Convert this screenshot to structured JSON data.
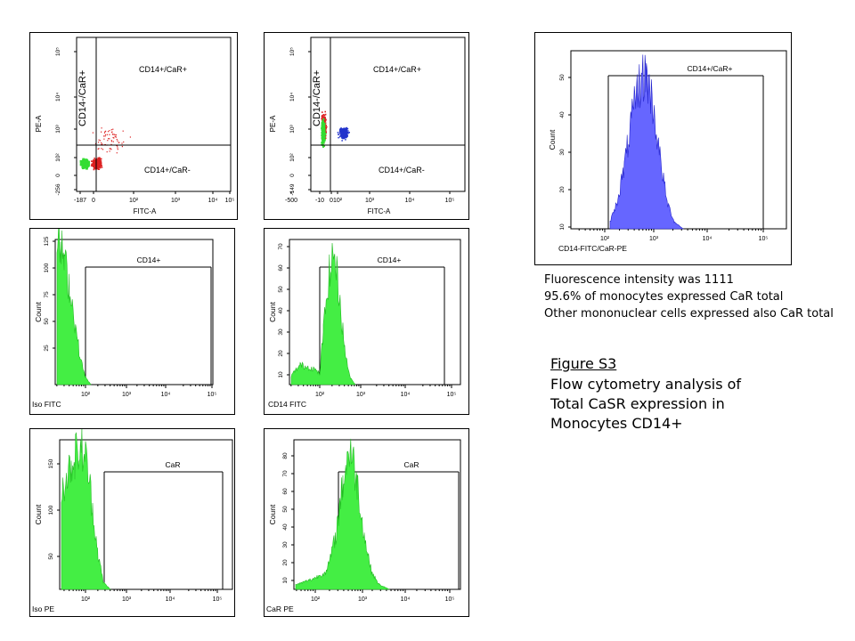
{
  "colors": {
    "green": "#33dd33",
    "red": "#dd2222",
    "blue": "#2233cc",
    "frame": "#000000",
    "hist_blue": "#4444ee"
  },
  "panels": {
    "dot1": {
      "xlabel": "FITC-A",
      "ylabel": "PE-A",
      "yticks": [
        "10⁵",
        "10⁴",
        "10³",
        "10²",
        "0",
        "-256"
      ],
      "xticks": [
        "-187",
        "0",
        "10²",
        "10³",
        "10⁴",
        "10⁵"
      ],
      "quadrants": {
        "ul": "CD14-/CaR+",
        "ur": "CD14+/CaR+",
        "lr": "CD14+/CaR-"
      }
    },
    "dot2": {
      "xlabel": "FITC-A",
      "ylabel": "PE-A",
      "yticks": [
        "10⁵",
        "10⁴",
        "10³",
        "10²",
        "0",
        "-149"
      ],
      "xticks": [
        "-500",
        "-10",
        "0",
        "10²",
        "10³",
        "10⁴",
        "10⁵"
      ],
      "quadrants": {
        "ul": "CD14-/CaR+",
        "ur": "CD14+/CaR+",
        "lr": "CD14+/CaR-"
      }
    },
    "iso_fitc": {
      "xlabel": "Iso FITC",
      "ylabel": "Count",
      "gate": "CD14+",
      "yticks": [
        "125",
        "100",
        "75",
        "50",
        "25"
      ],
      "xticks": [
        "10²",
        "10³",
        "10⁴",
        "10⁵"
      ]
    },
    "cd14_fitc": {
      "xlabel": "CD14 FITC",
      "ylabel": "Count",
      "gate": "CD14+",
      "yticks": [
        "70",
        "60",
        "50",
        "40",
        "30",
        "20",
        "10"
      ],
      "xticks": [
        "10²",
        "10³",
        "10⁴",
        "10⁵"
      ]
    },
    "iso_pe": {
      "xlabel": "Iso PE",
      "ylabel": "Count",
      "gate": "CaR",
      "yticks": [
        "150",
        "100",
        "50"
      ],
      "xticks": [
        "10²",
        "10³",
        "10⁴",
        "10⁵"
      ]
    },
    "car_pe": {
      "xlabel": "CaR PE",
      "ylabel": "Count",
      "gate": "CaR",
      "yticks": [
        "80",
        "70",
        "60",
        "50",
        "40",
        "30",
        "20",
        "10"
      ],
      "xticks": [
        "10²",
        "10³",
        "10⁴",
        "10⁵"
      ]
    },
    "big": {
      "xlabel": "CD14-FITC/CaR-PE",
      "ylabel": "Count",
      "gate": "CD14+/CaR+",
      "yticks": [
        "50",
        "40",
        "30",
        "20",
        "10"
      ],
      "xticks": [
        "10²",
        "10³",
        "10⁴",
        "10⁵"
      ]
    }
  },
  "caption": [
    "Fluorescence intensity was 1111",
    "95.6% of monocytes expressed CaR total",
    "Other mononuclear cells expressed also CaR total"
  ],
  "figure": {
    "title": "Figure S3",
    "lines": [
      "Flow cytometry analysis of",
      "Total CaSR expression in",
      "Monocytes CD14+"
    ]
  },
  "chart_data": [
    {
      "type": "scatter",
      "title": "",
      "xlabel": "FITC-A",
      "ylabel": "PE-A",
      "populations": [
        {
          "color": "green"
        },
        {
          "color": "red"
        }
      ],
      "quadrant_labels": [
        "CD14-/CaR+",
        "CD14+/CaR+",
        "CD14+/CaR-"
      ]
    },
    {
      "type": "scatter",
      "title": "",
      "xlabel": "FITC-A",
      "ylabel": "PE-A",
      "populations": [
        {
          "color": "green"
        },
        {
          "color": "red"
        },
        {
          "color": "blue"
        }
      ],
      "quadrant_labels": [
        "CD14-/CaR+",
        "CD14+/CaR+",
        "CD14+/CaR-"
      ]
    },
    {
      "type": "area",
      "xlabel": "Iso FITC",
      "ylabel": "Count",
      "gate": "CD14+",
      "x": [
        1.4,
        1.6,
        1.8,
        2.0,
        2.2
      ],
      "y": [
        123,
        100,
        70,
        20,
        0
      ],
      "ylim": [
        0,
        125
      ]
    },
    {
      "type": "area",
      "xlabel": "CD14 FITC",
      "ylabel": "Count",
      "gate": "CD14+",
      "x": [
        1.2,
        1.8,
        2.1,
        2.3,
        2.5,
        2.7
      ],
      "y": [
        10,
        12,
        25,
        70,
        20,
        0
      ],
      "ylim": [
        0,
        70
      ]
    },
    {
      "type": "area",
      "xlabel": "Iso PE",
      "ylabel": "Count",
      "gate": "CaR",
      "x": [
        1.6,
        1.8,
        2.0,
        2.2,
        2.5
      ],
      "y": [
        150,
        120,
        100,
        40,
        0
      ],
      "ylim": [
        0,
        150
      ]
    },
    {
      "type": "area",
      "xlabel": "CaR PE",
      "ylabel": "Count",
      "gate": "CaR",
      "x": [
        1.6,
        2.2,
        2.6,
        2.8,
        3.0,
        3.3
      ],
      "y": [
        5,
        10,
        60,
        80,
        30,
        0
      ],
      "ylim": [
        0,
        80
      ]
    },
    {
      "type": "area",
      "xlabel": "CD14-FITC/CaR-PE",
      "ylabel": "Count",
      "gate": "CD14+/CaR+",
      "x": [
        2.4,
        2.7,
        2.9,
        3.1,
        3.3
      ],
      "y": [
        5,
        30,
        58,
        20,
        0
      ],
      "ylim": [
        0,
        58
      ]
    }
  ]
}
